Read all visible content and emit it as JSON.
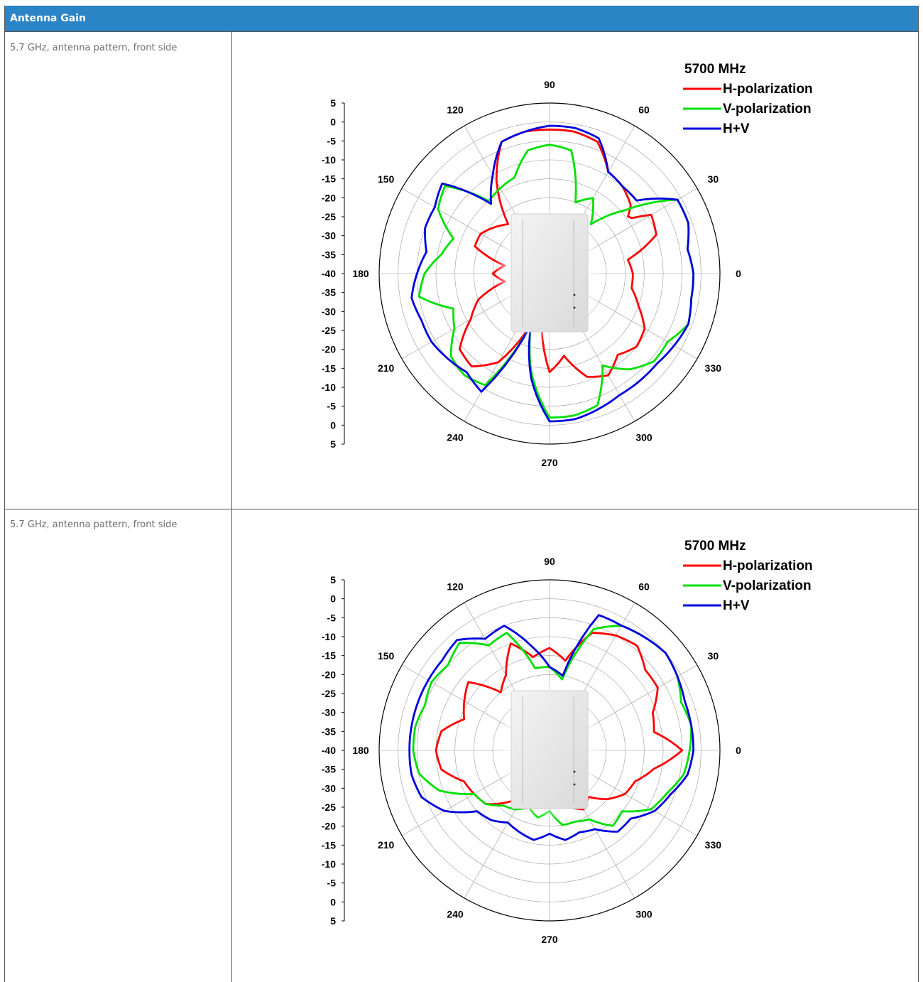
{
  "header": {
    "title": "Antenna Gain"
  },
  "rows": [
    {
      "label": "5.7 GHz, antenna pattern, front side"
    },
    {
      "label": "5.7 GHz, antenna pattern, front side"
    }
  ],
  "chart_data": [
    {
      "type": "polar-line",
      "title": "5700 MHz",
      "angle_labels": [
        "0",
        "30",
        "60",
        "90",
        "120",
        "150",
        "180",
        "210",
        "240",
        "270",
        "300",
        "330"
      ],
      "radial_tick_labels": [
        "5",
        "0",
        "-5",
        "-10",
        "-15",
        "-20",
        "-25",
        "-30",
        "-35",
        "-40",
        "-35",
        "-30",
        "-25",
        "-20",
        "-15",
        "-10",
        "-5",
        "0",
        "5"
      ],
      "r_range_dB": [
        -40,
        5
      ],
      "legend_position": "top-right",
      "series": [
        {
          "name": "H-polarization",
          "color": "#ff0000",
          "points": [
            [
              0,
              -18
            ],
            [
              10,
              -19
            ],
            [
              20,
              -10
            ],
            [
              30,
              -9
            ],
            [
              35,
              -15
            ],
            [
              40,
              -12
            ],
            [
              50,
              -10
            ],
            [
              60,
              -9
            ],
            [
              70,
              -3
            ],
            [
              80,
              -2
            ],
            [
              90,
              -2
            ],
            [
              100,
              -2
            ],
            [
              110,
              -3
            ],
            [
              120,
              -12
            ],
            [
              130,
              -23
            ],
            [
              140,
              -21
            ],
            [
              150,
              -19
            ],
            [
              160,
              -19
            ],
            [
              170,
              -28
            ],
            [
              180,
              -25
            ],
            [
              190,
              -28
            ],
            [
              200,
              -20
            ],
            [
              210,
              -16
            ],
            [
              220,
              -9
            ],
            [
              230,
              -8
            ],
            [
              240,
              -13
            ],
            [
              250,
              -26
            ],
            [
              260,
              -28
            ],
            [
              270,
              -14
            ],
            [
              280,
              -18
            ],
            [
              290,
              -11
            ],
            [
              300,
              -9
            ],
            [
              310,
              -12
            ],
            [
              320,
              -10
            ],
            [
              330,
              -11
            ],
            [
              340,
              -15
            ],
            [
              350,
              -18
            ]
          ]
        },
        {
          "name": "V-polarization",
          "color": "#00e000",
          "points": [
            [
              0,
              -2
            ],
            [
              10,
              -3
            ],
            [
              20,
              -1
            ],
            [
              30,
              -1
            ],
            [
              40,
              -14
            ],
            [
              50,
              -23
            ],
            [
              60,
              -17
            ],
            [
              70,
              -20
            ],
            [
              80,
              -7
            ],
            [
              90,
              -6
            ],
            [
              100,
              -7
            ],
            [
              110,
              -13
            ],
            [
              120,
              -14
            ],
            [
              130,
              -15
            ],
            [
              140,
              -4
            ],
            [
              150,
              -6
            ],
            [
              160,
              -13
            ],
            [
              170,
              -11
            ],
            [
              180,
              -7
            ],
            [
              190,
              -5
            ],
            [
              200,
              -13
            ],
            [
              210,
              -11
            ],
            [
              220,
              -6
            ],
            [
              230,
              -5
            ],
            [
              240,
              -6
            ],
            [
              250,
              -26
            ],
            [
              260,
              -13
            ],
            [
              270,
              -2
            ],
            [
              280,
              -2
            ],
            [
              290,
              -3
            ],
            [
              300,
              -12
            ],
            [
              310,
              -7
            ],
            [
              320,
              -4
            ],
            [
              330,
              -4
            ],
            [
              340,
              -1
            ],
            [
              350,
              -2
            ]
          ]
        },
        {
          "name": "H+V",
          "color": "#0000e0",
          "points": [
            [
              0,
              -2
            ],
            [
              10,
              -3
            ],
            [
              20,
              -1
            ],
            [
              30,
              -1
            ],
            [
              40,
              -10
            ],
            [
              50,
              -10
            ],
            [
              60,
              -9
            ],
            [
              70,
              -2
            ],
            [
              80,
              -1
            ],
            [
              90,
              -1
            ],
            [
              100,
              -2
            ],
            [
              110,
              -3
            ],
            [
              120,
              -10
            ],
            [
              130,
              -16
            ],
            [
              140,
              -3
            ],
            [
              150,
              -5
            ],
            [
              160,
              -5
            ],
            [
              170,
              -7
            ],
            [
              180,
              -5
            ],
            [
              190,
              -3
            ],
            [
              200,
              -4
            ],
            [
              210,
              -4
            ],
            [
              220,
              -5
            ],
            [
              230,
              -6
            ],
            [
              240,
              -4
            ],
            [
              250,
              -26
            ],
            [
              260,
              -12
            ],
            [
              270,
              -1
            ],
            [
              280,
              -1
            ],
            [
              290,
              -2
            ],
            [
              300,
              -3
            ],
            [
              310,
              -3
            ],
            [
              320,
              -3
            ],
            [
              330,
              -2
            ],
            [
              340,
              -1
            ],
            [
              350,
              -2
            ]
          ]
        }
      ]
    },
    {
      "type": "polar-line",
      "title": "5700 MHz",
      "angle_labels": [
        "0",
        "30",
        "60",
        "90",
        "120",
        "150",
        "180",
        "210",
        "240",
        "270",
        "300",
        "330"
      ],
      "radial_tick_labels": [
        "5",
        "0",
        "-5",
        "-10",
        "-15",
        "-20",
        "-25",
        "-30",
        "-35",
        "-40",
        "-35",
        "-30",
        "-25",
        "-20",
        "-15",
        "-10",
        "-5",
        "0",
        "5"
      ],
      "r_range_dB": [
        -40,
        5
      ],
      "legend_position": "top-right",
      "series": [
        {
          "name": "H-polarization",
          "color": "#ff0000",
          "points": [
            [
              0,
              -5
            ],
            [
              10,
              -12
            ],
            [
              20,
              -11
            ],
            [
              30,
              -7
            ],
            [
              40,
              -7
            ],
            [
              50,
              -4
            ],
            [
              60,
              -5
            ],
            [
              70,
              -7
            ],
            [
              80,
              -16
            ],
            [
              90,
              -13
            ],
            [
              100,
              -15
            ],
            [
              110,
              -10
            ],
            [
              120,
              -17
            ],
            [
              130,
              -20
            ],
            [
              140,
              -12
            ],
            [
              150,
              -14
            ],
            [
              160,
              -16
            ],
            [
              170,
              -11
            ],
            [
              180,
              -10
            ],
            [
              190,
              -11
            ],
            [
              200,
              -16
            ],
            [
              210,
              -17
            ],
            [
              220,
              -18
            ],
            [
              230,
              -22
            ],
            [
              240,
              -26
            ],
            [
              250,
              -24
            ],
            [
              260,
              -26
            ],
            [
              270,
              -25
            ],
            [
              280,
              -25
            ],
            [
              290,
              -24
            ],
            [
              300,
              -22
            ],
            [
              310,
              -24
            ],
            [
              320,
              -20
            ],
            [
              330,
              -17
            ],
            [
              340,
              -16
            ],
            [
              350,
              -12
            ]
          ]
        },
        {
          "name": "V-polarization",
          "color": "#00e000",
          "points": [
            [
              0,
              -3
            ],
            [
              10,
              -2
            ],
            [
              20,
              -3
            ],
            [
              30,
              -1
            ],
            [
              40,
              0
            ],
            [
              50,
              -1
            ],
            [
              60,
              -2
            ],
            [
              70,
              -6
            ],
            [
              80,
              -21
            ],
            [
              90,
              -18
            ],
            [
              100,
              -18
            ],
            [
              110,
              -7
            ],
            [
              120,
              -8
            ],
            [
              130,
              -3
            ],
            [
              140,
              -5
            ],
            [
              150,
              -4
            ],
            [
              160,
              -5
            ],
            [
              170,
              -4
            ],
            [
              180,
              -4
            ],
            [
              190,
              -5
            ],
            [
              200,
              -9
            ],
            [
              210,
              -17
            ],
            [
              220,
              -18
            ],
            [
              230,
              -21
            ],
            [
              240,
              -22
            ],
            [
              250,
              -24
            ],
            [
              260,
              -22
            ],
            [
              270,
              -24
            ],
            [
              280,
              -20
            ],
            [
              290,
              -20
            ],
            [
              300,
              -19
            ],
            [
              310,
              -14
            ],
            [
              320,
              -15
            ],
            [
              330,
              -9
            ],
            [
              340,
              -7
            ],
            [
              350,
              -4
            ]
          ]
        },
        {
          "name": "H+V",
          "color": "#0000e0",
          "points": [
            [
              0,
              -2
            ],
            [
              10,
              -2
            ],
            [
              20,
              -2
            ],
            [
              30,
              -1
            ],
            [
              40,
              0
            ],
            [
              50,
              -1
            ],
            [
              60,
              -2
            ],
            [
              70,
              -2
            ],
            [
              80,
              -20
            ],
            [
              90,
              -18
            ],
            [
              100,
              -12
            ],
            [
              110,
              -5
            ],
            [
              120,
              -6
            ],
            [
              130,
              -2
            ],
            [
              140,
              -3
            ],
            [
              150,
              -3
            ],
            [
              160,
              -3
            ],
            [
              170,
              -3
            ],
            [
              180,
              -3
            ],
            [
              190,
              -3
            ],
            [
              200,
              -4
            ],
            [
              210,
              -8
            ],
            [
              220,
              -15
            ],
            [
              230,
              -16
            ],
            [
              240,
              -18
            ],
            [
              250,
              -17
            ],
            [
              260,
              -16
            ],
            [
              270,
              -18
            ],
            [
              280,
              -16
            ],
            [
              290,
              -17
            ],
            [
              300,
              -16
            ],
            [
              310,
              -12
            ],
            [
              320,
              -12
            ],
            [
              330,
              -8
            ],
            [
              340,
              -6
            ],
            [
              350,
              -3
            ]
          ]
        }
      ]
    }
  ]
}
